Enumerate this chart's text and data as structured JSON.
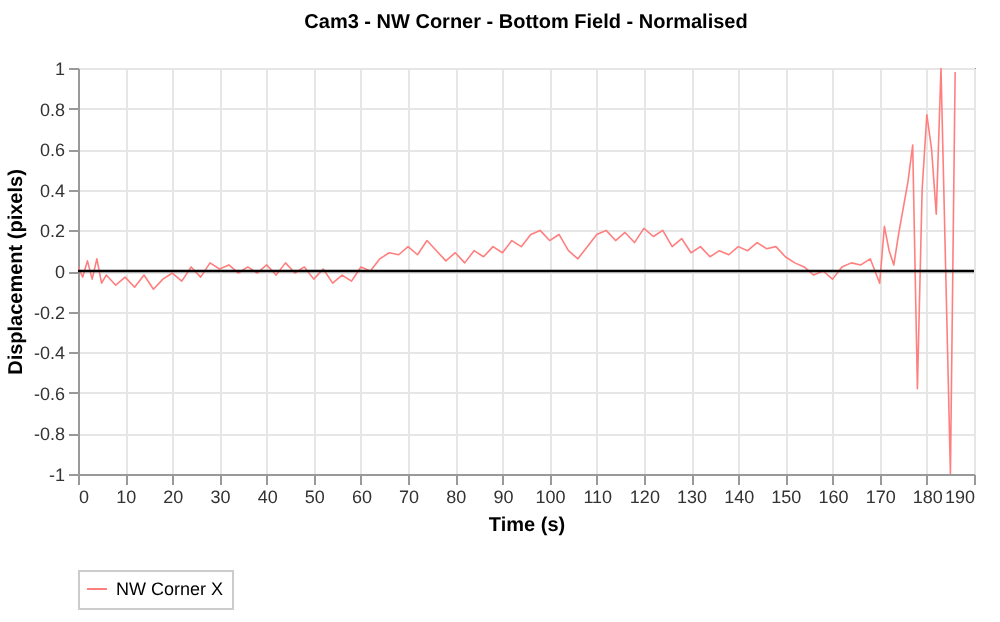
{
  "chart_data": {
    "type": "line",
    "title": "Cam3 - NW Corner - Bottom Field - Normalised",
    "xlabel": "Time (s)",
    "ylabel": "Displacement (pixels)",
    "x": [
      0,
      1,
      2,
      3,
      4,
      5,
      6,
      8,
      10,
      12,
      14,
      16,
      18,
      20,
      22,
      24,
      26,
      28,
      30,
      32,
      34,
      36,
      38,
      40,
      42,
      44,
      46,
      48,
      50,
      52,
      54,
      56,
      58,
      60,
      62,
      64,
      66,
      68,
      70,
      72,
      74,
      76,
      78,
      80,
      82,
      84,
      86,
      88,
      90,
      92,
      94,
      96,
      98,
      100,
      102,
      104,
      106,
      108,
      110,
      112,
      114,
      116,
      118,
      120,
      122,
      124,
      126,
      128,
      130,
      132,
      134,
      136,
      138,
      140,
      142,
      144,
      146,
      148,
      150,
      152,
      154,
      156,
      158,
      160,
      162,
      164,
      166,
      168,
      170,
      171,
      172,
      173,
      174,
      176,
      177,
      178,
      179,
      180,
      181,
      182,
      183,
      185,
      186
    ],
    "series": [
      {
        "name": "NW Corner X",
        "color": "#ff7f7f",
        "values": [
          0.02,
          -0.03,
          0.05,
          -0.04,
          0.06,
          -0.06,
          -0.02,
          -0.07,
          -0.03,
          -0.08,
          -0.02,
          -0.09,
          -0.04,
          -0.01,
          -0.05,
          0.02,
          -0.03,
          0.04,
          0.01,
          0.03,
          -0.01,
          0.02,
          -0.01,
          0.03,
          -0.02,
          0.04,
          -0.01,
          0.02,
          -0.04,
          0.01,
          -0.06,
          -0.02,
          -0.05,
          0.02,
          0.0,
          0.06,
          0.09,
          0.08,
          0.12,
          0.08,
          0.15,
          0.1,
          0.05,
          0.09,
          0.04,
          0.1,
          0.07,
          0.12,
          0.09,
          0.15,
          0.12,
          0.18,
          0.2,
          0.15,
          0.18,
          0.1,
          0.06,
          0.12,
          0.18,
          0.2,
          0.15,
          0.19,
          0.14,
          0.21,
          0.17,
          0.2,
          0.12,
          0.16,
          0.09,
          0.12,
          0.07,
          0.1,
          0.08,
          0.12,
          0.1,
          0.14,
          0.11,
          0.12,
          0.07,
          0.04,
          0.02,
          -0.02,
          0.0,
          -0.04,
          0.02,
          0.04,
          0.03,
          0.06,
          -0.06,
          0.22,
          0.1,
          0.03,
          0.18,
          0.44,
          0.62,
          -0.58,
          0.4,
          0.77,
          0.6,
          0.28,
          1.0,
          -1.0,
          0.98
        ]
      }
    ],
    "xlim": [
      0,
      190
    ],
    "xticks": [
      0,
      10,
      20,
      30,
      40,
      50,
      60,
      70,
      80,
      90,
      100,
      110,
      120,
      130,
      140,
      150,
      160,
      170,
      180,
      190
    ],
    "ylim": [
      -1,
      1
    ],
    "yticks": [
      -1,
      -0.8,
      -0.6,
      -0.4,
      -0.2,
      0,
      0.2,
      0.4,
      0.6,
      0.8,
      1
    ],
    "ref_lines": [
      {
        "axis": "y",
        "value": 0,
        "color": "#000000"
      }
    ],
    "grid": true,
    "legend": "bottom",
    "marker": "none",
    "line_style": "solid"
  }
}
